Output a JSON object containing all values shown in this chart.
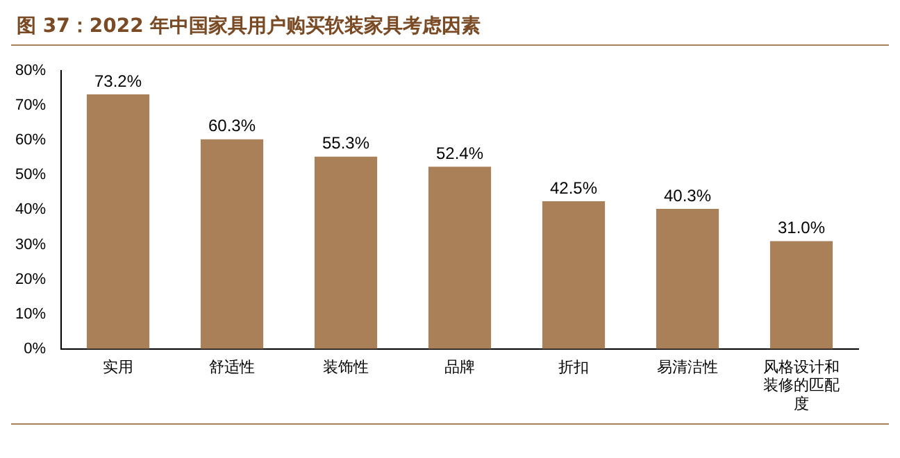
{
  "chart_data": {
    "type": "bar",
    "title": "图 37：2022 年中国家具用户购买软装家具考虑因素",
    "categories": [
      "实用",
      "舒适性",
      "装饰性",
      "品牌",
      "折扣",
      "易清洁性",
      "风格设计和装修的匹配度"
    ],
    "values": [
      73.2,
      60.3,
      55.3,
      52.4,
      42.5,
      40.3,
      31.0
    ],
    "value_labels": [
      "73.2%",
      "60.3%",
      "55.3%",
      "52.4%",
      "42.5%",
      "40.3%",
      "31.0%"
    ],
    "color": "#a98057",
    "ylim": [
      0,
      80
    ],
    "yticks": [
      {
        "value": 0,
        "label": "0%"
      },
      {
        "value": 10,
        "label": "10%"
      },
      {
        "value": 20,
        "label": "20%"
      },
      {
        "value": 30,
        "label": "30%"
      },
      {
        "value": 40,
        "label": "40%"
      },
      {
        "value": 50,
        "label": "50%"
      },
      {
        "value": 60,
        "label": "60%"
      },
      {
        "value": 70,
        "label": "70%"
      },
      {
        "value": 80,
        "label": "80%"
      }
    ],
    "grid": false,
    "legend": false
  }
}
